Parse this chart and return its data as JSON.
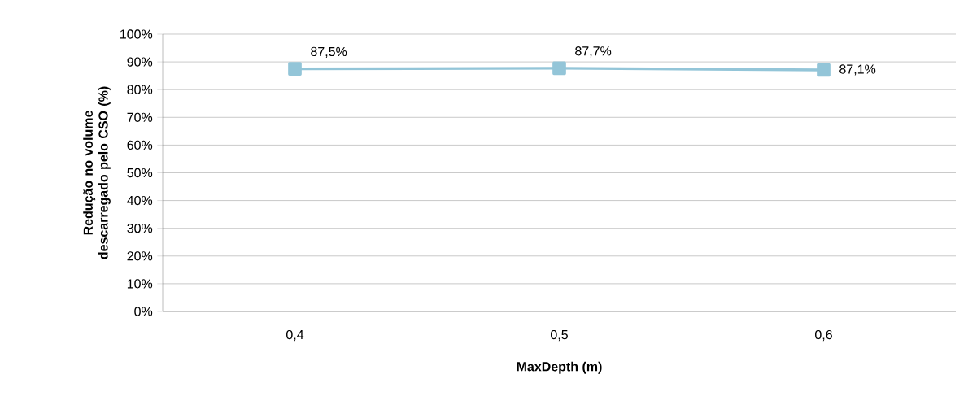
{
  "chart_data": {
    "type": "line",
    "xlabel": "MaxDepth (m)",
    "ylabel": "Redução no volume descarregado pelo CSO (%)",
    "categories": [
      "0,4",
      "0,5",
      "0,6"
    ],
    "series": [
      {
        "color": "#93c5d8",
        "values": [
          87.5,
          87.7,
          87.1
        ],
        "value_labels": [
          "87,5%",
          "87,7%",
          "87,1%"
        ]
      }
    ],
    "ylim": [
      0,
      100
    ],
    "yticks": [
      {
        "value": 0,
        "label": "0%"
      },
      {
        "value": 10,
        "label": "10%"
      },
      {
        "value": 20,
        "label": "20%"
      },
      {
        "value": 30,
        "label": "30%"
      },
      {
        "value": 40,
        "label": "40%"
      },
      {
        "value": 50,
        "label": "50%"
      },
      {
        "value": 60,
        "label": "60%"
      },
      {
        "value": 70,
        "label": "70%"
      },
      {
        "value": 80,
        "label": "80%"
      },
      {
        "value": 90,
        "label": "90%"
      },
      {
        "value": 100,
        "label": "100%"
      }
    ],
    "grid": "y",
    "marker": "square",
    "line_style": "solid"
  }
}
